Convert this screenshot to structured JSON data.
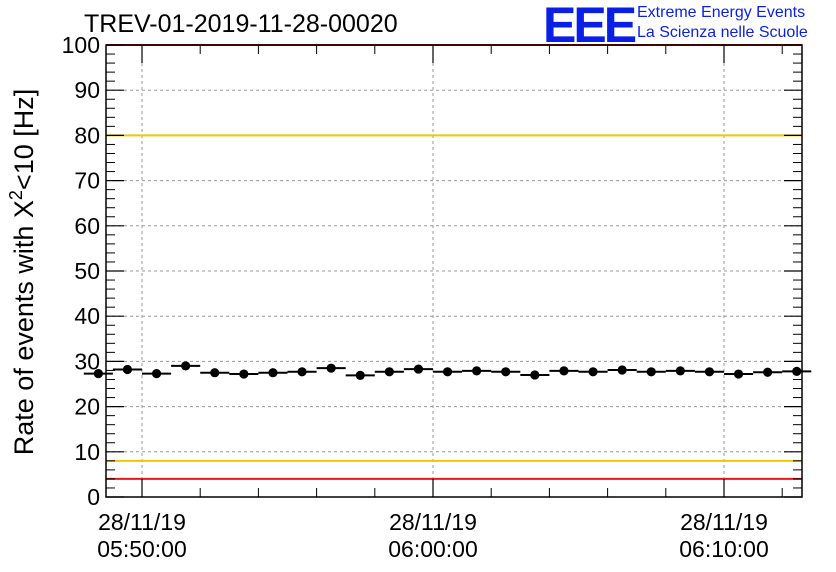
{
  "title": "TREV-01-2019-11-28-00020",
  "logo": {
    "letters": "EEE",
    "line1": "Extreme Energy Events",
    "line2": "La Scienza nelle Scuole",
    "color": "#0a1fe6"
  },
  "chart_data": {
    "type": "scatter",
    "title": "TREV-01-2019-11-28-00020",
    "ylabel_main": "Rate of events with X",
    "ylabel_sup": "2",
    "ylabel_rest": "<10 [Hz]",
    "ylim": [
      0,
      100
    ],
    "y_ticks": [
      0,
      10,
      20,
      30,
      40,
      50,
      60,
      70,
      80,
      90,
      100
    ],
    "x_ticks": [
      {
        "date": "28/11/19",
        "time": "05:50:00"
      },
      {
        "date": "28/11/19",
        "time": "06:00:00"
      },
      {
        "date": "28/11/19",
        "time": "06:10:00"
      }
    ],
    "grid": true,
    "thresholds": [
      {
        "value": 100,
        "color": "#e8181b"
      },
      {
        "value": 80,
        "color": "#f0c800"
      },
      {
        "value": 8,
        "color": "#f0c800"
      },
      {
        "value": 4,
        "color": "#e8181b"
      }
    ],
    "bin_width_minutes": 1,
    "series": [
      {
        "times": [
          "05:48:30",
          "05:49:30",
          "05:50:30",
          "05:51:30",
          "05:52:30",
          "05:53:30",
          "05:54:30",
          "05:55:30",
          "05:56:30",
          "05:57:30",
          "05:58:30",
          "05:59:30",
          "06:00:30",
          "06:01:30",
          "06:02:30",
          "06:03:30",
          "06:04:30",
          "06:05:30",
          "06:06:30",
          "06:07:30",
          "06:08:30",
          "06:09:30",
          "06:10:30",
          "06:11:30",
          "06:12:30"
        ],
        "values": [
          27.3,
          28.2,
          27.3,
          29.0,
          27.5,
          27.2,
          27.5,
          27.7,
          28.5,
          26.9,
          27.7,
          28.3,
          27.7,
          27.9,
          27.7,
          27.0,
          27.9,
          27.7,
          28.1,
          27.7,
          27.9,
          27.7,
          27.2,
          27.6,
          27.8
        ],
        "color": "#000000"
      }
    ]
  }
}
